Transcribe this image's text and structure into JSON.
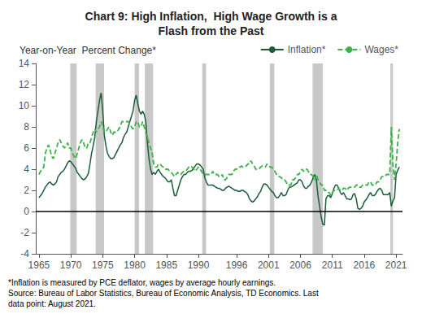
{
  "chart_data": {
    "type": "line",
    "title": "Chart 9: High Inflation,  High Wage Growth is a\nFlash from the Past",
    "ylabel": "Year-on-Year  Percent Change*",
    "footnote": "*Inflation is measured by PCE deflator, wages by average hourly earnings.\nSource: Bureau of Labor Statistics, Bureau of Economic Analysis, TD Economics. Last\ndata point: August 2021.",
    "xlim": [
      1964.5,
      2022.0
    ],
    "xticks": [
      1965,
      1970,
      1975,
      1980,
      1985,
      1990,
      1996,
      2001,
      2006,
      2011,
      2016,
      2021
    ],
    "ylim": [
      -4,
      14
    ],
    "yticks": [
      -4,
      -2,
      0,
      2,
      4,
      6,
      8,
      10,
      12,
      14
    ],
    "grid": false,
    "legend": "upper right",
    "recession_bars": [
      [
        1969.9,
        1970.9
      ],
      [
        1973.9,
        1975.2
      ],
      [
        1980.0,
        1980.7
      ],
      [
        1981.6,
        1982.9
      ],
      [
        1990.6,
        1991.2
      ],
      [
        2001.2,
        2001.9
      ],
      [
        2007.9,
        2009.5
      ],
      [
        2020.1,
        2020.5
      ]
    ],
    "recession_color": "#c8c8c8",
    "hlines": [
      {
        "value": 0,
        "color": "#000000"
      }
    ],
    "x": [
      1965.0,
      1965.25,
      1965.5,
      1965.75,
      1966.0,
      1966.25,
      1966.5,
      1966.75,
      1967.0,
      1967.25,
      1967.5,
      1967.75,
      1968.0,
      1968.25,
      1968.5,
      1968.75,
      1969.0,
      1969.25,
      1969.5,
      1969.75,
      1970.0,
      1970.25,
      1970.5,
      1970.75,
      1971.0,
      1971.25,
      1971.5,
      1971.75,
      1972.0,
      1972.25,
      1972.5,
      1972.75,
      1973.0,
      1973.25,
      1973.5,
      1973.75,
      1974.0,
      1974.25,
      1974.5,
      1974.75,
      1975.0,
      1975.25,
      1975.5,
      1975.75,
      1976.0,
      1976.25,
      1976.5,
      1976.75,
      1977.0,
      1977.25,
      1977.5,
      1977.75,
      1978.0,
      1978.25,
      1978.5,
      1978.75,
      1979.0,
      1979.25,
      1979.5,
      1979.75,
      1980.0,
      1980.25,
      1980.5,
      1980.75,
      1981.0,
      1981.25,
      1981.5,
      1981.75,
      1982.0,
      1982.25,
      1982.5,
      1982.75,
      1983.0,
      1983.25,
      1983.5,
      1983.75,
      1984.0,
      1984.25,
      1984.5,
      1984.75,
      1985.0,
      1985.25,
      1985.5,
      1985.75,
      1986.0,
      1986.25,
      1986.5,
      1986.75,
      1987.0,
      1987.25,
      1987.5,
      1987.75,
      1988.0,
      1988.25,
      1988.5,
      1988.75,
      1989.0,
      1989.25,
      1989.5,
      1989.75,
      1990.0,
      1990.25,
      1990.5,
      1990.75,
      1991.0,
      1991.25,
      1991.5,
      1991.75,
      1992.0,
      1992.25,
      1992.5,
      1992.75,
      1993.0,
      1993.25,
      1993.5,
      1993.75,
      1994.0,
      1994.25,
      1994.5,
      1994.75,
      1995.0,
      1995.25,
      1995.5,
      1995.75,
      1996.0,
      1996.25,
      1996.5,
      1996.75,
      1997.0,
      1997.25,
      1997.5,
      1997.75,
      1998.0,
      1998.25,
      1998.5,
      1998.75,
      1999.0,
      1999.25,
      1999.5,
      1999.75,
      2000.0,
      2000.25,
      2000.5,
      2000.75,
      2001.0,
      2001.25,
      2001.5,
      2001.75,
      2002.0,
      2002.25,
      2002.5,
      2002.75,
      2003.0,
      2003.25,
      2003.5,
      2003.75,
      2004.0,
      2004.25,
      2004.5,
      2004.75,
      2005.0,
      2005.25,
      2005.5,
      2005.75,
      2006.0,
      2006.25,
      2006.5,
      2006.75,
      2007.0,
      2007.25,
      2007.5,
      2007.75,
      2008.0,
      2008.25,
      2008.5,
      2008.75,
      2009.0,
      2009.25,
      2009.5,
      2009.75,
      2010.0,
      2010.25,
      2010.5,
      2010.75,
      2011.0,
      2011.25,
      2011.5,
      2011.75,
      2012.0,
      2012.25,
      2012.5,
      2012.75,
      2013.0,
      2013.25,
      2013.5,
      2013.75,
      2014.0,
      2014.25,
      2014.5,
      2014.75,
      2015.0,
      2015.25,
      2015.5,
      2015.75,
      2016.0,
      2016.25,
      2016.5,
      2016.75,
      2017.0,
      2017.25,
      2017.5,
      2017.75,
      2018.0,
      2018.25,
      2018.5,
      2018.75,
      2019.0,
      2019.25,
      2019.5,
      2019.75,
      2020.0,
      2020.25,
      2020.5,
      2020.75,
      2021.0,
      2021.25,
      2021.5
    ],
    "series": [
      {
        "name": "Inflation*",
        "color": "#1a5c38",
        "line_style": "solid",
        "values": [
          1.3,
          1.5,
          1.7,
          2.0,
          2.3,
          2.5,
          2.7,
          2.8,
          2.6,
          2.5,
          2.6,
          2.8,
          3.3,
          3.5,
          3.7,
          3.8,
          4.0,
          4.3,
          4.6,
          4.8,
          4.7,
          4.5,
          4.3,
          4.1,
          3.7,
          3.5,
          3.3,
          3.1,
          3.0,
          3.1,
          3.3,
          3.6,
          4.5,
          5.5,
          6.2,
          7.0,
          8.5,
          9.5,
          10.5,
          11.2,
          9.5,
          7.2,
          6.2,
          5.5,
          5.2,
          5.0,
          5.0,
          5.1,
          5.4,
          5.7,
          6.0,
          6.3,
          6.5,
          7.0,
          7.3,
          7.5,
          8.0,
          8.5,
          9.0,
          9.5,
          10.5,
          11.0,
          10.2,
          9.5,
          9.2,
          9.5,
          9.2,
          8.5,
          6.5,
          5.0,
          4.0,
          3.5,
          3.7,
          3.5,
          3.8,
          4.0,
          3.7,
          3.5,
          3.3,
          3.2,
          3.0,
          2.8,
          2.8,
          3.0,
          2.2,
          1.5,
          1.5,
          2.0,
          2.5,
          3.0,
          3.3,
          3.5,
          3.5,
          3.7,
          3.8,
          3.8,
          3.9,
          4.1,
          4.3,
          4.5,
          4.5,
          4.4,
          4.2,
          4.0,
          3.2,
          2.8,
          2.5,
          2.5,
          2.5,
          2.5,
          2.4,
          2.3,
          2.2,
          2.2,
          2.1,
          2.0,
          2.0,
          2.2,
          2.3,
          2.4,
          2.3,
          2.2,
          2.1,
          2.0,
          2.0,
          1.9,
          1.9,
          2.0,
          2.0,
          1.9,
          1.8,
          1.6,
          1.2,
          1.0,
          0.9,
          1.0,
          1.2,
          1.4,
          1.7,
          1.9,
          2.3,
          2.6,
          2.6,
          2.5,
          2.3,
          2.1,
          1.9,
          1.8,
          1.5,
          1.3,
          1.3,
          1.5,
          1.8,
          1.5,
          1.5,
          1.6,
          2.0,
          2.3,
          2.3,
          2.4,
          2.5,
          2.6,
          2.7,
          3.0,
          3.0,
          2.8,
          2.4,
          2.2,
          2.2,
          2.4,
          2.5,
          2.8,
          3.2,
          3.5,
          3.0,
          1.5,
          0.5,
          -0.5,
          -1.2,
          -1.3,
          1.2,
          1.5,
          1.5,
          1.3,
          1.7,
          2.2,
          2.5,
          2.5,
          2.2,
          1.8,
          1.6,
          1.8,
          1.5,
          1.2,
          1.2,
          1.1,
          1.2,
          1.6,
          1.7,
          1.2,
          0.3,
          0.2,
          0.3,
          0.5,
          0.9,
          1.1,
          1.3,
          1.6,
          1.8,
          1.5,
          1.5,
          1.6,
          1.9,
          2.1,
          2.2,
          2.0,
          1.6,
          1.6,
          1.6,
          1.6,
          1.8,
          0.5,
          1.0,
          1.3,
          3.5,
          3.9,
          4.2
        ]
      },
      {
        "name": "Wages*",
        "color": "#3cb34a",
        "line_style": "dashed",
        "values": [
          3.5,
          3.8,
          4.0,
          4.2,
          5.5,
          6.0,
          6.3,
          5.8,
          5.2,
          5.0,
          5.5,
          6.0,
          6.5,
          6.8,
          6.5,
          6.2,
          6.0,
          6.2,
          6.5,
          6.0,
          6.0,
          5.5,
          5.2,
          5.0,
          5.5,
          6.0,
          6.5,
          6.8,
          6.5,
          6.0,
          6.0,
          6.5,
          6.5,
          7.0,
          7.5,
          7.8,
          7.5,
          7.8,
          8.0,
          8.5,
          8.0,
          7.5,
          7.5,
          7.8,
          8.0,
          7.5,
          7.2,
          7.5,
          7.5,
          7.5,
          7.8,
          8.0,
          8.5,
          8.5,
          8.5,
          8.5,
          8.5,
          8.3,
          8.0,
          7.8,
          8.0,
          8.5,
          8.5,
          8.0,
          8.0,
          8.5,
          8.0,
          7.5,
          7.0,
          6.5,
          6.0,
          5.5,
          4.5,
          4.2,
          4.2,
          4.5,
          4.5,
          4.3,
          4.2,
          4.0,
          4.0,
          4.0,
          3.8,
          3.7,
          3.5,
          3.3,
          3.5,
          3.7,
          3.5,
          3.5,
          3.7,
          3.8,
          3.8,
          4.0,
          4.2,
          4.3,
          4.2,
          4.0,
          3.8,
          4.0,
          4.2,
          4.0,
          3.8,
          3.5,
          3.5,
          3.5,
          3.5,
          3.5,
          3.5,
          3.8,
          3.5,
          3.5,
          3.5,
          3.3,
          3.3,
          3.5,
          3.0,
          3.0,
          3.2,
          3.5,
          3.5,
          3.5,
          3.8,
          4.0,
          4.0,
          4.2,
          4.2,
          4.3,
          4.2,
          4.3,
          4.3,
          4.5,
          4.5,
          4.8,
          4.5,
          4.3,
          4.0,
          4.0,
          4.0,
          4.2,
          4.3,
          4.2,
          4.2,
          4.5,
          4.3,
          4.2,
          4.2,
          4.0,
          3.8,
          3.5,
          3.3,
          3.3,
          3.2,
          3.0,
          3.0,
          2.8,
          2.5,
          2.5,
          2.5,
          3.0,
          3.0,
          3.2,
          3.5,
          3.5,
          3.8,
          4.0,
          3.8,
          4.0,
          4.0,
          3.8,
          3.5,
          3.5,
          3.3,
          3.0,
          3.5,
          3.0,
          2.8,
          2.5,
          2.5,
          2.0,
          2.0,
          1.8,
          1.8,
          1.5,
          1.8,
          2.0,
          2.0,
          2.0,
          2.2,
          2.0,
          2.0,
          2.2,
          2.2,
          2.0,
          2.2,
          2.3,
          2.3,
          2.3,
          2.3,
          2.5,
          2.5,
          2.3,
          2.3,
          2.5,
          2.5,
          2.5,
          2.5,
          2.8,
          2.8,
          2.5,
          2.5,
          2.5,
          2.8,
          2.8,
          3.0,
          3.3,
          3.3,
          3.3,
          3.5,
          3.5,
          3.5,
          8.0,
          4.5,
          3.0,
          4.5,
          6.5,
          7.8
        ]
      }
    ]
  }
}
